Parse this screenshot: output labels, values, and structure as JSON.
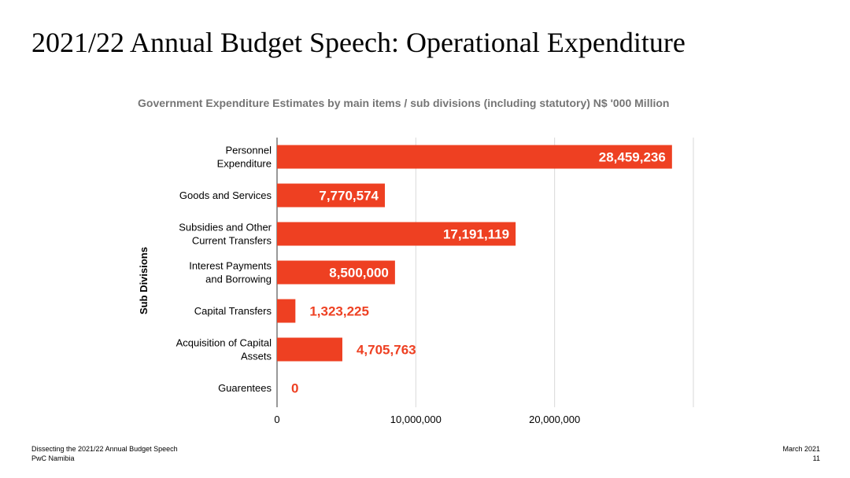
{
  "slide": {
    "title": "2021/22 Annual Budget Speech: Operational Expenditure"
  },
  "footer": {
    "left_line1": "Dissecting the 2021/22 Annual Budget Speech",
    "left_line2": "PwC Namibia",
    "right_line1": "March 2021",
    "right_line2": "11"
  },
  "colors": {
    "bar": "#ee4022",
    "label_inside": "#ffffff",
    "label_outside": "#ee4022",
    "grid": "#d9d9d9",
    "title": "#757575"
  },
  "chart_data": {
    "type": "bar",
    "orientation": "horizontal",
    "title": "Government Expenditure Estimates by main items / sub divisions (including statutory) N$ '000 Million",
    "xlabel": "",
    "ylabel": "Sub Divisions",
    "categories": [
      [
        "Personnel",
        "Expenditure"
      ],
      [
        "Goods and Services"
      ],
      [
        "Subsidies and Other",
        "Current Transfers"
      ],
      [
        "Interest Payments",
        "and Borrowing"
      ],
      [
        "Capital Transfers"
      ],
      [
        "Acquisition of Capital",
        "Assets"
      ],
      [
        "Guarentees"
      ]
    ],
    "values": [
      28459236,
      7770574,
      17191119,
      8500000,
      1323225,
      4705763,
      0
    ],
    "data_labels": [
      "28,459,236",
      "7,770,574",
      "17,191,119",
      "8,500,000",
      "1,323,225",
      "4,705,763",
      "0"
    ],
    "xticks": [
      0,
      10000000,
      20000000
    ],
    "xtick_labels": [
      "0",
      "10,000,000",
      "20,000,000"
    ],
    "xlim": [
      0,
      30000000
    ],
    "grid": true,
    "legend": "none"
  }
}
